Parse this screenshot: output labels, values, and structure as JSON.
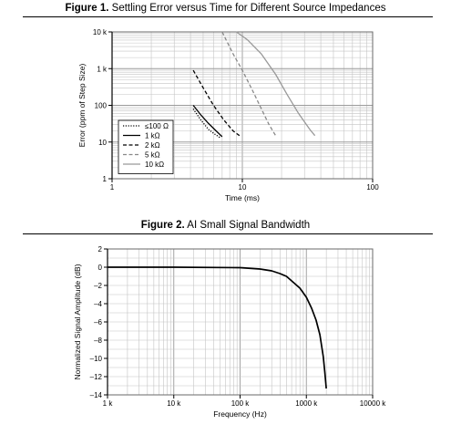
{
  "figures": [
    {
      "label": "Figure 1.",
      "caption": " Settling Error versus Time for Different Source Impedances"
    },
    {
      "label": "Figure 2.",
      "caption": " AI Small Signal Bandwidth"
    }
  ],
  "chart_data": [
    {
      "type": "line",
      "title": "Figure 1. Settling Error versus Time for Different Source Impedances",
      "xlabel": "Time (ms)",
      "ylabel": "Error (ppm of Step Size)",
      "x_scale": "log",
      "y_scale": "log",
      "xlim": [
        1,
        100
      ],
      "ylim": [
        1,
        10000
      ],
      "x_ticks": [
        {
          "value": 1,
          "label": "1"
        },
        {
          "value": 10,
          "label": "10"
        },
        {
          "value": 100,
          "label": "100"
        }
      ],
      "y_ticks": [
        {
          "value": 1,
          "label": "1"
        },
        {
          "value": 10,
          "label": "10"
        },
        {
          "value": 100,
          "label": "100"
        },
        {
          "value": 1000,
          "label": "1 k"
        },
        {
          "value": 10000,
          "label": "10 k"
        }
      ],
      "grid": true,
      "legend_position": "bottom-left",
      "series": [
        {
          "name": "≤100 Ω",
          "style": "dotted",
          "color": "#000000",
          "x": [
            4.2,
            4.8,
            5.5,
            6.2,
            6.8
          ],
          "y": [
            80,
            40,
            22,
            16,
            13
          ]
        },
        {
          "name": "1 kΩ",
          "style": "solid",
          "color": "#000000",
          "x": [
            4.2,
            4.8,
            5.5,
            6.3,
            7.0
          ],
          "y": [
            100,
            55,
            32,
            20,
            14
          ]
        },
        {
          "name": "2 kΩ",
          "style": "dashed",
          "color": "#000000",
          "x": [
            4.2,
            5.0,
            6.0,
            7.2,
            8.5,
            9.5
          ],
          "y": [
            900,
            300,
            100,
            40,
            20,
            15
          ]
        },
        {
          "name": "5 kΩ",
          "style": "dashed",
          "color": "#888888",
          "x": [
            7.0,
            8.5,
            10.0,
            12.0,
            14.0,
            16.0,
            18.0
          ],
          "y": [
            10000,
            2500,
            900,
            250,
            80,
            30,
            15
          ]
        },
        {
          "name": "10 kΩ",
          "style": "solid",
          "color": "#999999",
          "x": [
            9.0,
            11.0,
            14.0,
            18.0,
            22.0,
            27.0,
            33.0,
            36.0
          ],
          "y": [
            10000,
            6000,
            2500,
            700,
            200,
            60,
            22,
            15
          ]
        }
      ]
    },
    {
      "type": "line",
      "title": "Figure 2. AI Small Signal Bandwidth",
      "xlabel": "Frequency (Hz)",
      "ylabel": "Normalized Signal Amplitude (dB)",
      "x_scale": "log",
      "y_scale": "linear",
      "xlim": [
        1000,
        10000000
      ],
      "ylim": [
        -14,
        2
      ],
      "x_ticks": [
        {
          "value": 1000,
          "label": "1 k"
        },
        {
          "value": 10000,
          "label": "10 k"
        },
        {
          "value": 100000,
          "label": "100 k"
        },
        {
          "value": 1000000,
          "label": "1000 k"
        },
        {
          "value": 10000000,
          "label": "10000 k"
        }
      ],
      "y_ticks": [
        {
          "value": 2,
          "label": "2"
        },
        {
          "value": 0,
          "label": "0"
        },
        {
          "value": -2,
          "label": "–2"
        },
        {
          "value": -4,
          "label": "–4"
        },
        {
          "value": -6,
          "label": "–6"
        },
        {
          "value": -8,
          "label": "–8"
        },
        {
          "value": -10,
          "label": "–10"
        },
        {
          "value": -12,
          "label": "–12"
        },
        {
          "value": -14,
          "label": "–14"
        }
      ],
      "grid": true,
      "series": [
        {
          "color": "#000000",
          "style": "solid",
          "x": [
            1000,
            10000,
            100000,
            200000,
            300000,
            400000,
            500000,
            600000,
            800000,
            1000000,
            1200000,
            1400000,
            1600000,
            1800000,
            1900000,
            2000000
          ],
          "y": [
            0,
            0,
            -0.05,
            -0.2,
            -0.4,
            -0.7,
            -1.0,
            -1.5,
            -2.3,
            -3.3,
            -4.5,
            -5.8,
            -7.4,
            -9.8,
            -11.5,
            -13.3
          ]
        }
      ]
    }
  ]
}
